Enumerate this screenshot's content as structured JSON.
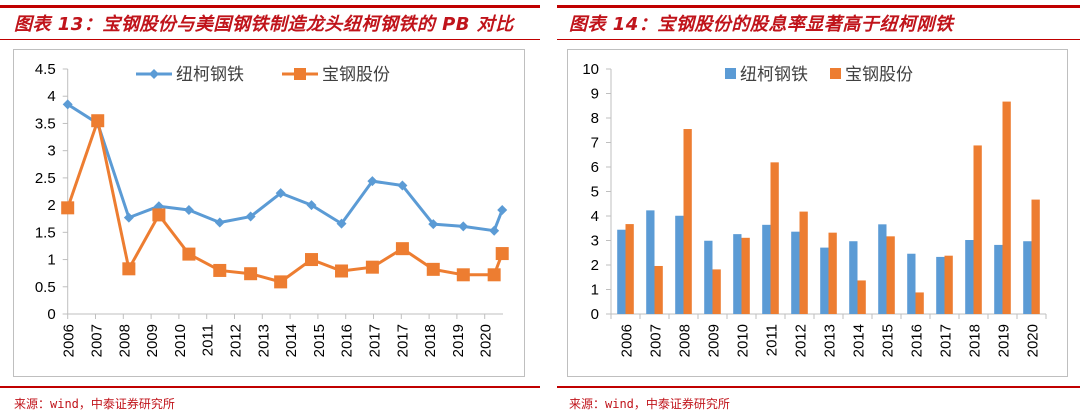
{
  "left": {
    "title": "图表 13：宝钢股份与美国钢铁制造龙头纽柯钢铁的 PB 对比",
    "source": "来源：wind，中泰证券研究所"
  },
  "right": {
    "title": "图表 14：宝钢股份的股息率显著高于纽柯刚铁",
    "source": "来源：wind，中泰证券研究所"
  },
  "colors": {
    "blue": "#5B9BD5",
    "orange": "#ED7D31",
    "header_red": "#C00000"
  },
  "chart_data": [
    {
      "type": "line",
      "title": "宝钢股份与美国钢铁制造龙头纽柯钢铁的 PB 对比",
      "xlabel": "",
      "ylabel": "",
      "categories": [
        "2006",
        "2007",
        "2008",
        "2009",
        "2010",
        "2011",
        "2012",
        "2013",
        "2014",
        "2015",
        "2016",
        "2017",
        "2017",
        "2018",
        "2019",
        "2020"
      ],
      "ylim": [
        0,
        4.5
      ],
      "yticks": [
        "0",
        "0.5",
        "1",
        "1.5",
        "2",
        "2.5",
        "3",
        "3.5",
        "4",
        "4.5"
      ],
      "ytick_values": [
        0,
        0.5,
        1,
        1.5,
        2,
        2.5,
        3,
        3.5,
        4,
        4.5
      ],
      "grid": false,
      "legend": "top-center",
      "point_positions": [
        0,
        1.08,
        2.2,
        3.28,
        4.36,
        5.47,
        6.58,
        7.66,
        8.77,
        9.85,
        10.96,
        12.04,
        13.15,
        14.23,
        15.34,
        15.63
      ],
      "series": [
        {
          "name": "纽柯钢铁",
          "color": "#5B9BD5",
          "marker": "diamond",
          "values": [
            3.85,
            3.5,
            1.77,
            1.98,
            1.91,
            1.68,
            1.79,
            2.22,
            2.0,
            1.66,
            2.44,
            2.36,
            1.65,
            1.61,
            1.53,
            1.91
          ]
        },
        {
          "name": "宝钢股份",
          "color": "#ED7D31",
          "marker": "square",
          "values": [
            1.95,
            3.55,
            0.83,
            1.82,
            1.1,
            0.8,
            0.74,
            0.59,
            1.0,
            0.79,
            0.86,
            1.2,
            0.82,
            0.72,
            0.72,
            1.11
          ]
        }
      ]
    },
    {
      "type": "bar",
      "title": "宝钢股份的股息率显著高于纽柯刚铁",
      "xlabel": "",
      "ylabel": "",
      "categories": [
        "2006",
        "2007",
        "2008",
        "2009",
        "2010",
        "2011",
        "2012",
        "2013",
        "2014",
        "2015",
        "2016",
        "2017",
        "2018",
        "2019",
        "2020"
      ],
      "ylim": [
        0,
        10
      ],
      "yticks": [
        "0",
        "1",
        "2",
        "3",
        "4",
        "5",
        "6",
        "7",
        "8",
        "9",
        "10"
      ],
      "ytick_values": [
        0,
        1,
        2,
        3,
        4,
        5,
        6,
        7,
        8,
        9,
        10
      ],
      "grid": false,
      "legend": "top-center",
      "series": [
        {
          "name": "纽柯钢铁",
          "color": "#5B9BD5",
          "values": [
            3.44,
            4.23,
            4.01,
            2.99,
            3.26,
            3.64,
            3.36,
            2.71,
            2.97,
            3.66,
            2.46,
            2.33,
            3.02,
            2.82,
            2.97
          ]
        },
        {
          "name": "宝钢股份",
          "color": "#ED7D31",
          "values": [
            3.67,
            1.96,
            7.55,
            1.82,
            3.11,
            6.19,
            4.18,
            3.32,
            1.37,
            3.17,
            0.88,
            2.38,
            6.88,
            8.67,
            4.67
          ]
        }
      ]
    }
  ]
}
